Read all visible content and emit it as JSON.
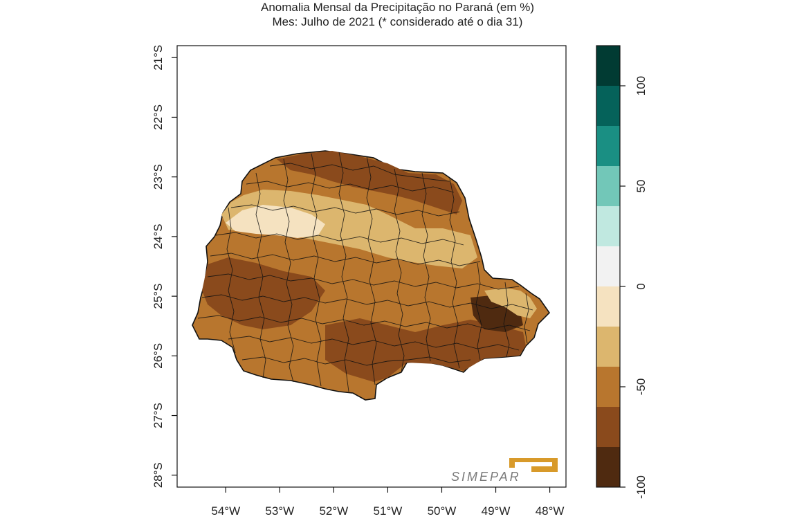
{
  "title": {
    "line1": "Anomalia Mensal da Precipitação no Paraná (em %)",
    "line2": "Mes: Julho de 2021 (* considerado até o dia 31)"
  },
  "map": {
    "x_ticks": [
      "54°W",
      "53°W",
      "52°W",
      "51°W",
      "50°W",
      "49°W",
      "48°W"
    ],
    "y_ticks": [
      "21°S",
      "22°S",
      "23°S",
      "24°S",
      "25°S",
      "26°S",
      "27°S",
      "28°S"
    ],
    "x_tick_values": [
      -54,
      -53,
      -52,
      -51,
      -50,
      -49,
      -48
    ],
    "y_tick_values": [
      -21,
      -22,
      -23,
      -24,
      -25,
      -26,
      -27,
      -28
    ],
    "lon_range": [
      -54.9,
      -47.7
    ],
    "lat_range": [
      -20.8,
      -28.2
    ],
    "logo_text": "SIMEPAR"
  },
  "colorbar": {
    "bins": [
      {
        "from": -100,
        "to": -80,
        "color": "#4f2a10"
      },
      {
        "from": -80,
        "to": -60,
        "color": "#8a4a1c"
      },
      {
        "from": -60,
        "to": -40,
        "color": "#b8762e"
      },
      {
        "from": -40,
        "to": -20,
        "color": "#dcb66e"
      },
      {
        "from": -20,
        "to": 0,
        "color": "#f5e2c0"
      },
      {
        "from": 0,
        "to": 20,
        "color": "#f2f2f2"
      },
      {
        "from": 20,
        "to": 40,
        "color": "#c0e8e0"
      },
      {
        "from": 40,
        "to": 60,
        "color": "#72c7b8"
      },
      {
        "from": 60,
        "to": 80,
        "color": "#1a8f83"
      },
      {
        "from": 80,
        "to": 100,
        "color": "#05625a"
      },
      {
        "from": 100,
        "to": 120,
        "color": "#013b33"
      }
    ],
    "tick_values": [
      -100,
      -50,
      0,
      50,
      100
    ],
    "tick_labels": [
      "-100",
      "-50",
      "0",
      "50",
      "100"
    ]
  },
  "colors": {
    "border": "#111111",
    "logo_gold": "#d89a2a",
    "logo_gray": "#7a7a7a"
  }
}
